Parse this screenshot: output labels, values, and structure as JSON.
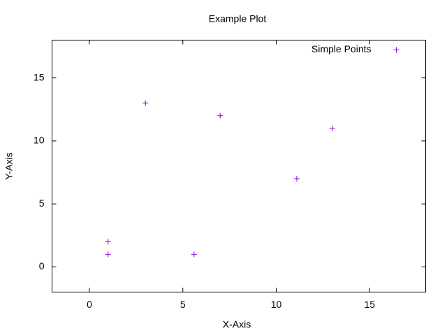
{
  "chart_data": {
    "type": "scatter",
    "title": "Example Plot",
    "x_label": "X-Axis",
    "y_label": "Y-Axis",
    "series": [
      {
        "name": "Simple Points",
        "color": "#9400d3",
        "x": [
          1,
          1,
          3,
          5.6,
          7,
          11.1,
          13
        ],
        "values": [
          1,
          2,
          13,
          1,
          12,
          7,
          11
        ]
      }
    ],
    "xlim": [
      -2,
      18
    ],
    "ylim": [
      -2,
      18
    ],
    "xticks": [
      0,
      5,
      10,
      15
    ],
    "yticks": [
      0,
      5,
      10,
      15
    ],
    "grid": false,
    "legend": "top-right"
  }
}
